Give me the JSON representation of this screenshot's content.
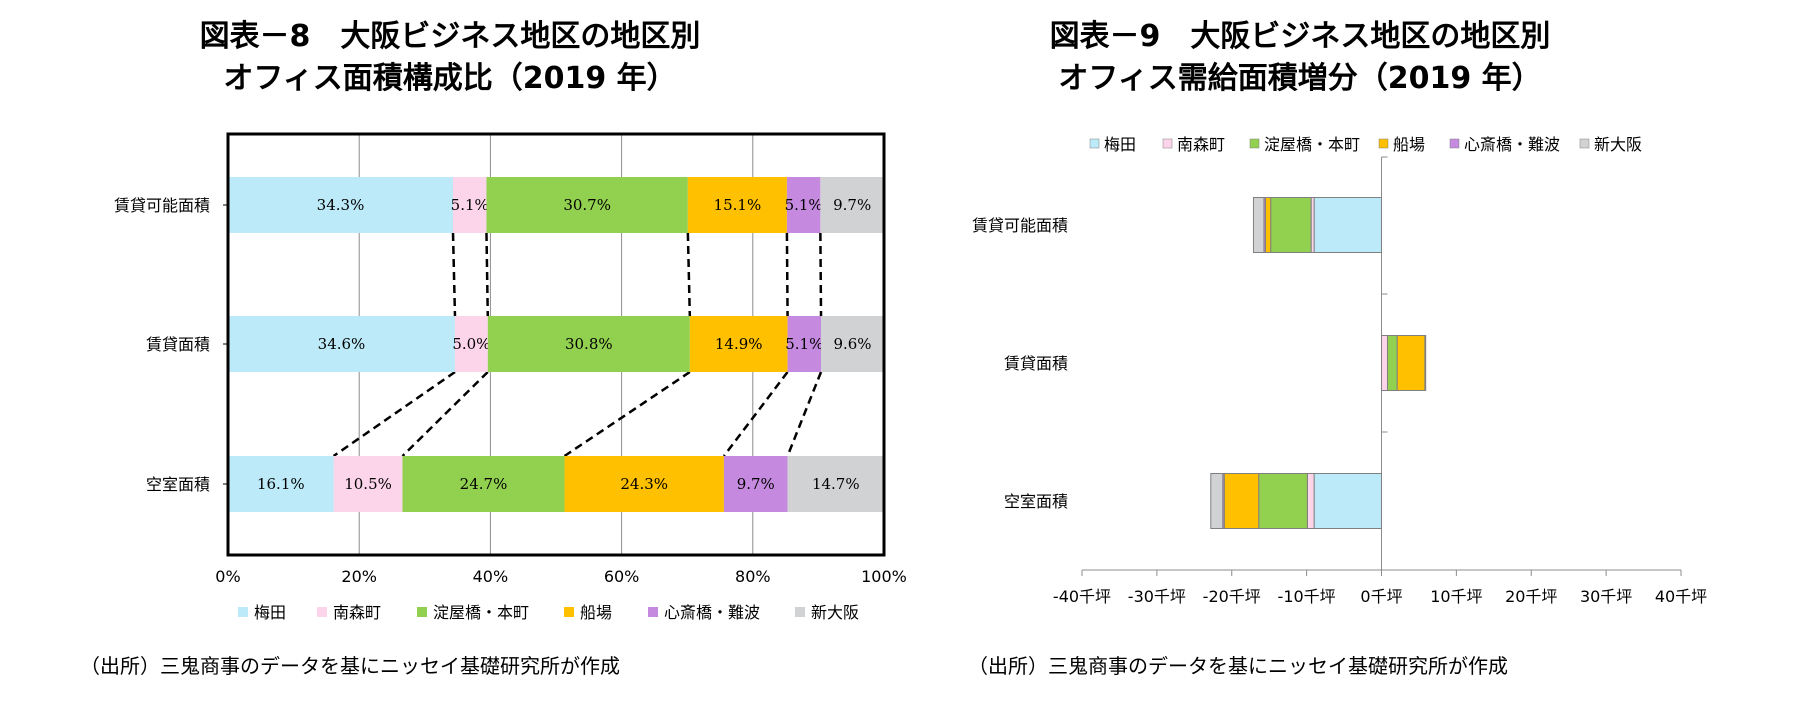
{
  "titles": {
    "left_line1": "図表－8　大阪ビジネス地区の地区別",
    "left_line2": "オフィス面積構成比（2019 年）",
    "right_line1": "図表－9　大阪ビジネス地区の地区別",
    "right_line2": "オフィス需給面積増分（2019 年）"
  },
  "source_left": "（出所）三鬼商事のデータを基にニッセイ基礎研究所が作成",
  "source_right": "（出所）三鬼商事のデータを基にニッセイ基礎研究所が作成",
  "colors": {
    "梅田": "#bdeaf8",
    "南森町": "#fcd5ea",
    "淀屋橋・本町": "#92d050",
    "船場": "#ffc000",
    "心斎橋・難波": "#c58ae0",
    "新大阪": "#d0d2d4"
  },
  "chart_data": [
    {
      "type": "bar",
      "orientation": "horizontal",
      "stacked": "percent",
      "categories": [
        "賃貸可能面積",
        "賃貸面積",
        "空室面積"
      ],
      "series": [
        {
          "name": "梅田",
          "values": [
            34.3,
            34.6,
            16.1
          ],
          "labels": [
            "34.3%",
            "34.6%",
            "16.1%"
          ]
        },
        {
          "name": "南森町",
          "values": [
            5.1,
            5.0,
            10.5
          ],
          "labels": [
            "5.1%",
            "5.0%",
            "10.5%"
          ]
        },
        {
          "name": "淀屋橋・本町",
          "values": [
            30.7,
            30.8,
            24.7
          ],
          "labels": [
            "30.7%",
            "30.8%",
            "24.7%"
          ]
        },
        {
          "name": "船場",
          "values": [
            15.1,
            14.9,
            24.3
          ],
          "labels": [
            "15.1%",
            "14.9%",
            "24.3%"
          ]
        },
        {
          "name": "心斎橋・難波",
          "values": [
            5.1,
            5.1,
            9.7
          ],
          "labels": [
            "5.1%",
            "5.1%",
            "9.7%"
          ]
        },
        {
          "name": "新大阪",
          "values": [
            9.7,
            9.6,
            14.7
          ],
          "labels": [
            "9.7%",
            "9.6%",
            "14.7%"
          ]
        }
      ],
      "x_ticks": [
        "0%",
        "20%",
        "40%",
        "60%",
        "80%",
        "100%"
      ],
      "xlim": [
        0,
        100
      ],
      "grid": true,
      "legend": "bottom"
    },
    {
      "type": "bar",
      "orientation": "horizontal",
      "stacked": "diverging",
      "unit": "千坪",
      "categories": [
        "賃貸可能面積",
        "賃貸面積",
        "空室面積"
      ],
      "series": [
        {
          "name": "梅田",
          "values": [
            -9.0,
            0,
            -9.0
          ]
        },
        {
          "name": "南森町",
          "values": [
            -0.4,
            0.8,
            -0.9
          ]
        },
        {
          "name": "淀屋橋・本町",
          "values": [
            -5.4,
            1.3,
            -6.5
          ]
        },
        {
          "name": "船場",
          "values": [
            -0.7,
            3.7,
            -4.6
          ]
        },
        {
          "name": "心斎橋・難波",
          "values": [
            -0.2,
            0.1,
            -0.2
          ]
        },
        {
          "name": "新大阪",
          "values": [
            -1.4,
            0,
            -1.6
          ]
        }
      ],
      "x_ticks": [
        "-40千坪",
        "-30千坪",
        "-20千坪",
        "-10千坪",
        "0千坪",
        "10千坪",
        "20千坪",
        "30千坪",
        "40千坪"
      ],
      "xlim": [
        -40,
        40
      ],
      "grid": false,
      "legend": "top"
    }
  ]
}
